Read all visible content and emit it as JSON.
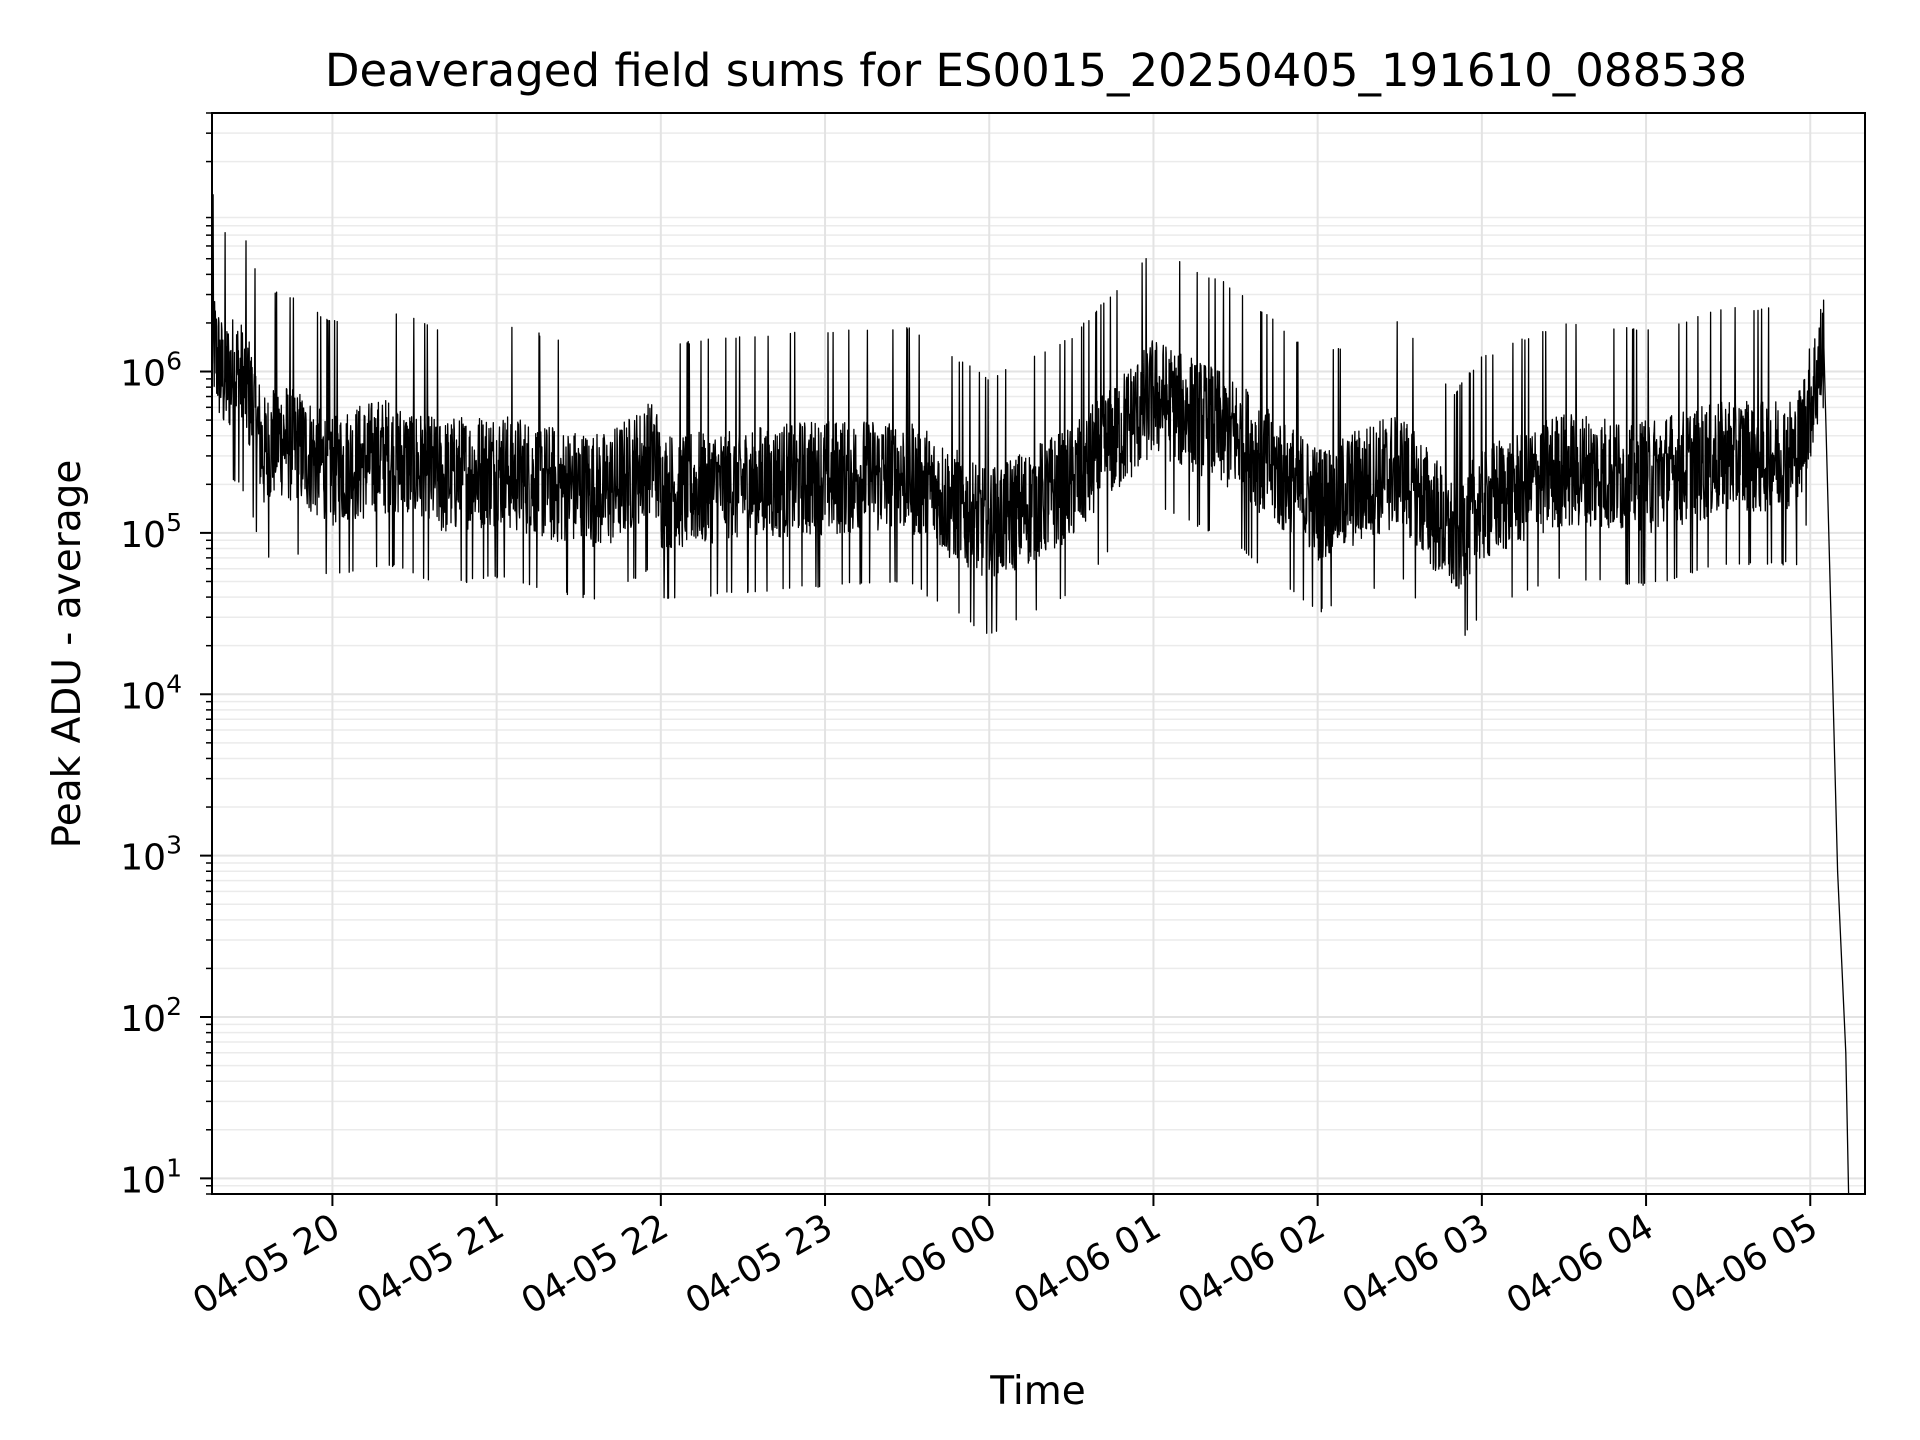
{
  "chart_data": {
    "type": "line",
    "title": "Deaveraged field sums for ES0015_20250405_191610_088538",
    "xlabel": "Time",
    "ylabel": "Peak ADU - average",
    "yscale": "log",
    "grid": true,
    "xlim": [
      "2025-04-05 19:16",
      "2025-04-06 05:20"
    ],
    "ylim": [
      8,
      40000000
    ],
    "x_ticks": [
      "04-05 20",
      "04-05 21",
      "04-05 22",
      "04-05 23",
      "04-06 00",
      "04-06 01",
      "04-06 02",
      "04-06 03",
      "04-06 04",
      "04-06 05"
    ],
    "y_ticks": [
      {
        "value": 10,
        "base": "10",
        "exp": "1"
      },
      {
        "value": 100,
        "base": "10",
        "exp": "2"
      },
      {
        "value": 1000,
        "base": "10",
        "exp": "3"
      },
      {
        "value": 10000,
        "base": "10",
        "exp": "4"
      },
      {
        "value": 100000,
        "base": "10",
        "exp": "5"
      },
      {
        "value": 1000000,
        "base": "10",
        "exp": "6"
      }
    ],
    "series": [
      {
        "color": "#000000",
        "points": [
          [
            "2025-04-05 19:16",
            1600000
          ],
          [
            "2025-04-05 19:20",
            900000
          ],
          [
            "2025-04-05 19:25",
            1000000
          ],
          [
            "2025-04-05 19:30",
            700000
          ],
          [
            "2025-04-05 19:35",
            300000
          ],
          [
            "2025-04-05 19:40",
            400000
          ],
          [
            "2025-04-05 20:00",
            250000
          ],
          [
            "2025-04-05 20:20",
            300000
          ],
          [
            "2025-04-05 20:40",
            220000
          ],
          [
            "2025-04-05 21:00",
            250000
          ],
          [
            "2025-04-05 21:20",
            200000
          ],
          [
            "2025-04-05 21:40",
            180000
          ],
          [
            "2025-04-05 21:58",
            300000
          ],
          [
            "2025-04-05 22:00",
            180000
          ],
          [
            "2025-04-05 22:30",
            200000
          ],
          [
            "2025-04-05 23:00",
            220000
          ],
          [
            "2025-04-05 23:30",
            230000
          ],
          [
            "2025-04-06 00:00",
            110000
          ],
          [
            "2025-04-06 00:30",
            200000
          ],
          [
            "2025-04-06 01:00",
            700000
          ],
          [
            "2025-04-06 01:30",
            400000
          ],
          [
            "2025-04-06 02:00",
            150000
          ],
          [
            "2025-04-06 02:30",
            250000
          ],
          [
            "2025-04-06 02:50",
            90000
          ],
          [
            "2025-04-06 03:00",
            150000
          ],
          [
            "2025-04-06 03:30",
            250000
          ],
          [
            "2025-04-06 04:00",
            220000
          ],
          [
            "2025-04-06 04:30",
            300000
          ],
          [
            "2025-04-06 04:55",
            300000
          ],
          [
            "2025-04-06 05:05",
            1400000
          ],
          [
            "2025-04-06 05:10",
            800
          ],
          [
            "2025-04-06 05:13",
            60
          ],
          [
            "2025-04-06 05:14",
            8
          ]
        ]
      }
    ]
  }
}
